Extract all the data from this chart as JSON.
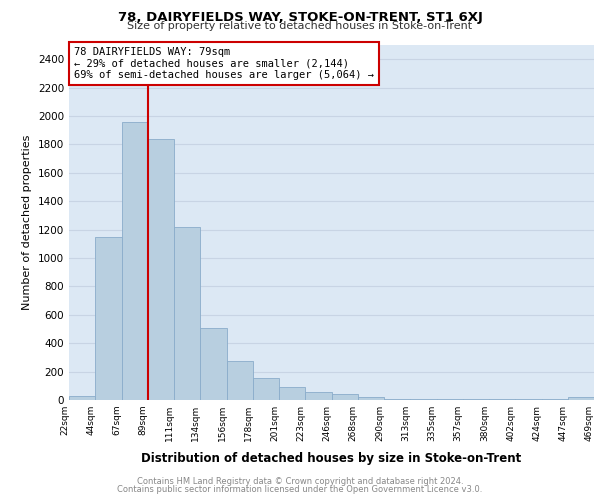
{
  "title": "78, DAIRYFIELDS WAY, STOKE-ON-TRENT, ST1 6XJ",
  "subtitle": "Size of property relative to detached houses in Stoke-on-Trent",
  "xlabel": "Distribution of detached houses by size in Stoke-on-Trent",
  "ylabel": "Number of detached properties",
  "bar_values": [
    25,
    1150,
    1960,
    1840,
    1220,
    510,
    275,
    155,
    90,
    55,
    45,
    20,
    10,
    5,
    5,
    5,
    5,
    5,
    5,
    20
  ],
  "bar_labels": [
    "22sqm",
    "44sqm",
    "67sqm",
    "89sqm",
    "111sqm",
    "134sqm",
    "156sqm",
    "178sqm",
    "201sqm",
    "223sqm",
    "246sqm",
    "268sqm",
    "290sqm",
    "313sqm",
    "335sqm",
    "357sqm",
    "380sqm",
    "402sqm",
    "424sqm",
    "447sqm",
    "469sqm"
  ],
  "bar_color": "#b8cfe0",
  "bar_edge_color": "#8aacca",
  "grid_color": "#c8d4e4",
  "bg_color": "#dce8f4",
  "vline_color": "#cc0000",
  "annotation_box_text": "78 DAIRYFIELDS WAY: 79sqm\n← 29% of detached houses are smaller (2,144)\n69% of semi-detached houses are larger (5,064) →",
  "annotation_box_color": "#cc0000",
  "ylim": [
    0,
    2500
  ],
  "yticks": [
    0,
    200,
    400,
    600,
    800,
    1000,
    1200,
    1400,
    1600,
    1800,
    2000,
    2200,
    2400
  ],
  "footer_line1": "Contains HM Land Registry data © Crown copyright and database right 2024.",
  "footer_line2": "Contains public sector information licensed under the Open Government Licence v3.0."
}
